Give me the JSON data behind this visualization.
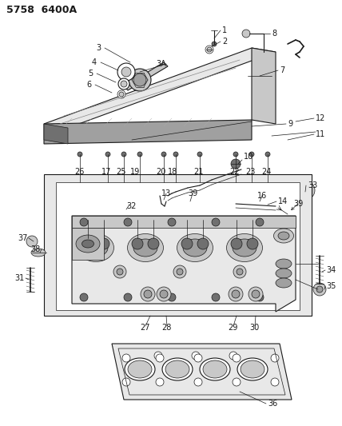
{
  "title": "5758  6400A",
  "bg_color": "#ffffff",
  "line_color": "#1a1a1a",
  "text_color": "#1a1a1a",
  "figsize": [
    4.28,
    5.33
  ],
  "dpi": 100,
  "font_size_title": 9,
  "font_size_label": 7,
  "lw_thin": 0.5,
  "lw_med": 0.8,
  "lw_thick": 1.2,
  "gray_fill": "#c8c8c8",
  "gray_mid": "#a0a0a0",
  "gray_dark": "#707070",
  "gray_light": "#e8e8e8"
}
